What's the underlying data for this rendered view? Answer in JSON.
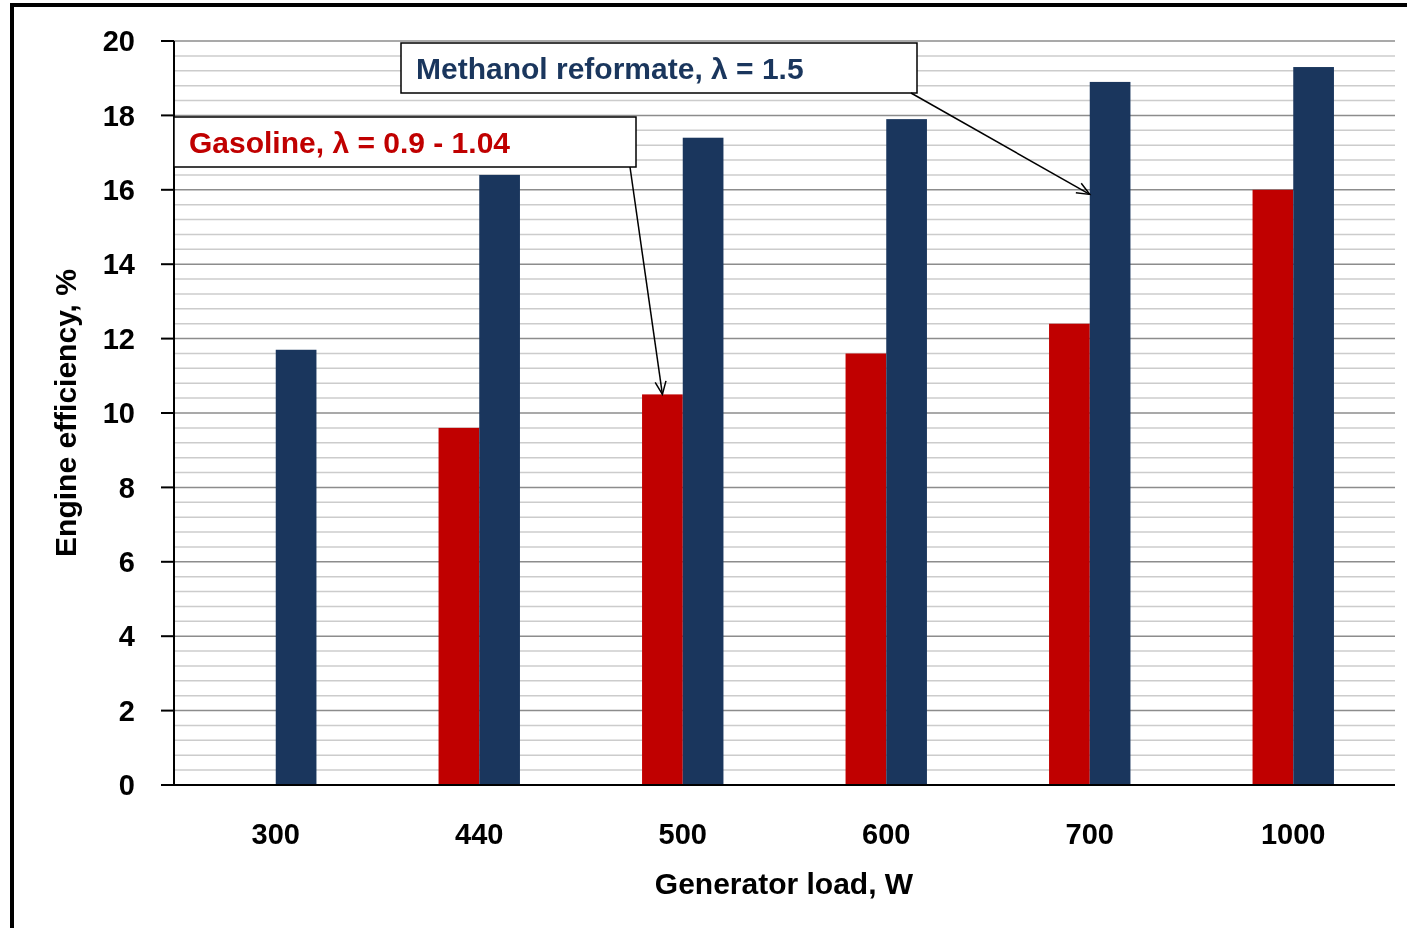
{
  "chart_data": {
    "type": "bar",
    "xlabel": "Generator load, W",
    "ylabel": "Engine efficiency, %",
    "categories": [
      "300",
      "440",
      "500",
      "600",
      "700",
      "1000"
    ],
    "series": [
      {
        "name": "Gasoline, λ = 0.9 - 1.04",
        "color": "#c00000",
        "values": [
          null,
          9.6,
          10.5,
          11.6,
          12.4,
          16.0
        ]
      },
      {
        "name": "Methanol reformate, λ = 1.5",
        "color": "#1a365d",
        "values": [
          11.7,
          16.4,
          17.4,
          17.9,
          18.9,
          19.3
        ]
      }
    ],
    "ylim": [
      0,
      20
    ],
    "yticks": [
      0,
      {
        "value": 0.4,
        "label": null
      },
      {
        "value": 0.8,
        "label": null
      },
      {
        "value": 1.2,
        "label": null
      },
      {
        "value": 1.6,
        "label": null
      },
      2,
      {
        "value": 2.4,
        "label": null
      },
      {
        "value": 2.8,
        "label": null
      },
      {
        "value": 3.2,
        "label": null
      },
      {
        "value": 3.6,
        "label": null
      },
      4,
      {
        "value": 4.4,
        "label": null
      },
      {
        "value": 4.8,
        "label": null
      },
      {
        "value": 5.2,
        "label": null
      },
      {
        "value": 5.6,
        "label": null
      },
      6,
      {
        "value": 6.4,
        "label": null
      },
      {
        "value": 6.8,
        "label": null
      },
      {
        "value": 7.2,
        "label": null
      },
      {
        "value": 7.6,
        "label": null
      },
      8,
      {
        "value": 8.4,
        "label": null
      },
      {
        "value": 8.8,
        "label": null
      },
      {
        "value": 9.2,
        "label": null
      },
      {
        "value": 9.6,
        "label": null
      },
      10,
      {
        "value": 10.4,
        "label": null
      },
      {
        "value": 10.8,
        "label": null
      },
      {
        "value": 11.2,
        "label": null
      },
      {
        "value": 11.6,
        "label": null
      },
      12,
      {
        "value": 12.4,
        "label": null
      },
      {
        "value": 12.8,
        "label": null
      },
      {
        "value": 13.2,
        "label": null
      },
      {
        "value": 13.6,
        "label": null
      },
      14,
      {
        "value": 14.4,
        "label": null
      },
      {
        "value": 14.8,
        "label": null
      },
      {
        "value": 15.2,
        "label": null
      },
      {
        "value": 15.6,
        "label": null
      },
      16,
      {
        "value": 16.4,
        "label": null
      },
      {
        "value": 16.8,
        "label": null
      },
      {
        "value": 17.2,
        "label": null
      },
      {
        "value": 17.6,
        "label": null
      },
      18,
      {
        "value": 18.4,
        "label": null
      },
      {
        "value": 18.8,
        "label": null
      },
      {
        "value": 19.2,
        "label": null
      },
      {
        "value": 19.6,
        "label": null
      },
      20
    ],
    "grid": true
  }
}
